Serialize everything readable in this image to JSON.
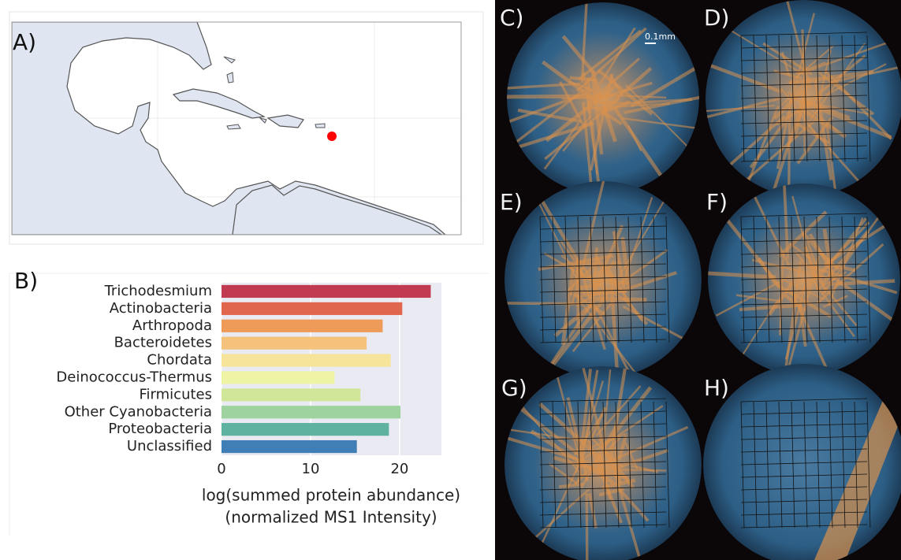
{
  "panel_labels": [
    "A)",
    "B)",
    "C)",
    "D)",
    "E)",
    "F)",
    "G)",
    "H)"
  ],
  "scale_bar": "0.1mm",
  "chart_data": {
    "type": "hbar",
    "categories": [
      "Trichodesmium",
      "Actinobacteria",
      "Arthropoda",
      "Bacteroidetes",
      "Chordata",
      "Deinococcus-Thermus",
      "Firmicutes",
      "Other Cyanobacteria",
      "Proteobacteria",
      "Unclassified"
    ],
    "values": [
      23.5,
      20.3,
      18.1,
      16.3,
      19.0,
      12.7,
      15.6,
      20.1,
      18.8,
      15.2
    ],
    "colors": [
      "#c23a52",
      "#e0674d",
      "#ee9a58",
      "#f4c27b",
      "#f5e49a",
      "#eef3a6",
      "#d0e79a",
      "#9ed3a0",
      "#5fb2a0",
      "#3f7fb6"
    ],
    "xlabel": [
      "log(summed protein abundance)",
      "(normalized MS1 Intensity)"
    ],
    "xlim": [
      0,
      24.7
    ],
    "xticks": [
      0,
      10,
      20
    ],
    "grid": true
  }
}
